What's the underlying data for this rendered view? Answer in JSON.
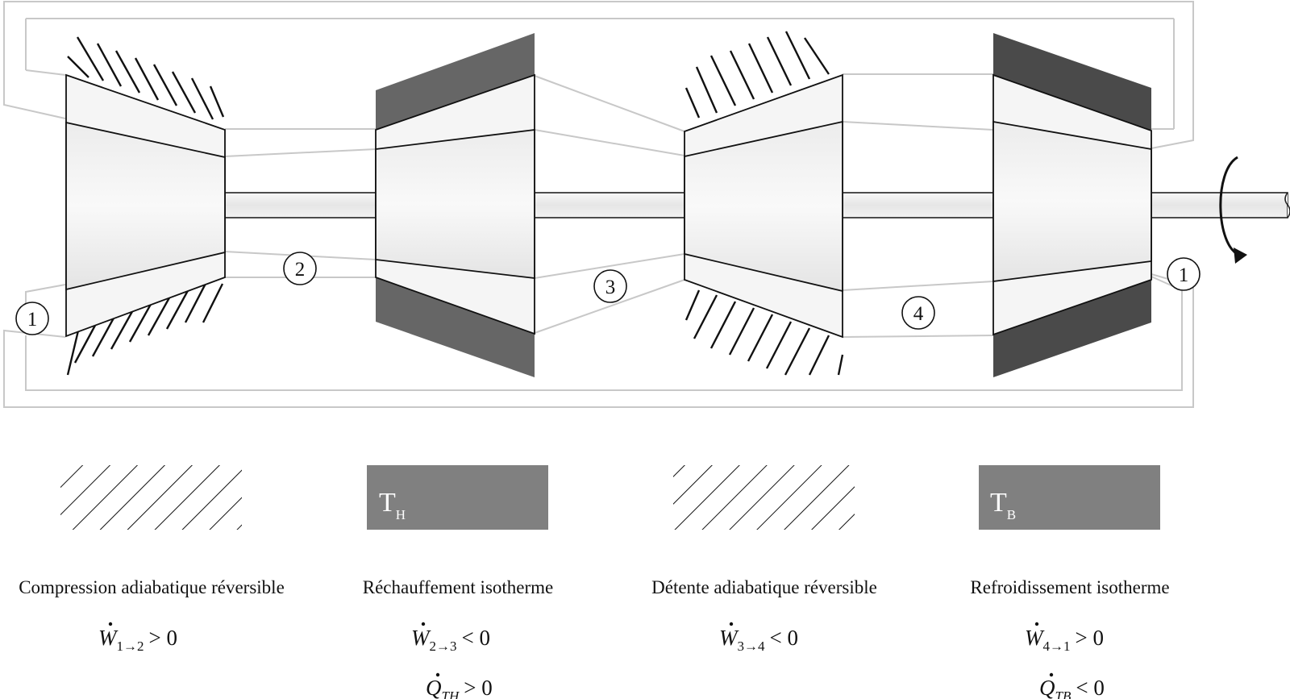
{
  "diagram": {
    "states": [
      "1",
      "2",
      "3",
      "4",
      "1"
    ],
    "reservoirs": {
      "hot": {
        "symbol": "T",
        "subscript": "H"
      },
      "cold": {
        "symbol": "T",
        "subscript": "B"
      }
    },
    "stages": [
      {
        "label": "Compression adiabatique réversible",
        "work": {
          "symbol": "W",
          "subscript": "1→2",
          "relation": "> 0"
        },
        "heat": null
      },
      {
        "label": "Réchauffement isotherme",
        "work": {
          "symbol": "W",
          "subscript": "2→3",
          "relation": "< 0"
        },
        "heat": {
          "symbol": "Q",
          "subscript": "TH",
          "relation": "> 0"
        }
      },
      {
        "label": "Détente adiabatique réversible",
        "work": {
          "symbol": "W",
          "subscript": "3→4",
          "relation": "< 0"
        },
        "heat": null
      },
      {
        "label": "Refroidissement isotherme",
        "work": {
          "symbol": "W",
          "subscript": "4→1",
          "relation": "> 0"
        },
        "heat": {
          "symbol": "Q",
          "subscript": "TB",
          "relation": "< 0"
        }
      }
    ],
    "colors": {
      "hot_reservoir": "#666666",
      "cold_reservoir": "#4a4a4a",
      "legend_reservoir": "#808080",
      "duct": "#c8c8c8",
      "casing": "#f5f5f5"
    }
  }
}
